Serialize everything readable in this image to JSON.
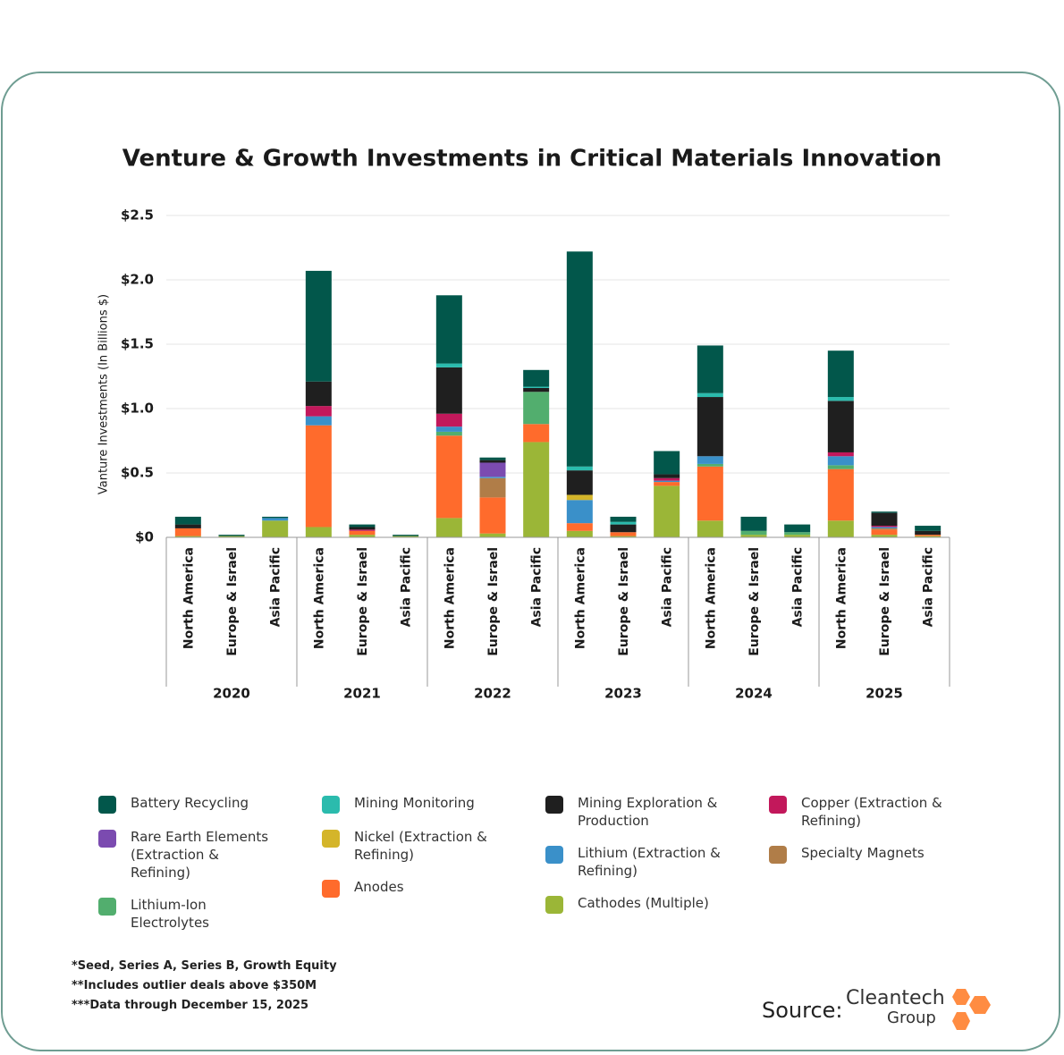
{
  "chart_data": {
    "type": "stacked_bar",
    "title": "Venture & Growth Investments in Critical Materials Innovation",
    "y_label": "Vanture Investments (In Billions $)",
    "categories": [
      "North America",
      "Europe & Israel",
      "Asia Pacific",
      "North America",
      "Europe & Israel",
      "Asia Pacific",
      "North America",
      "Europe & Israel",
      "Asia Pacific",
      "North America",
      "Europe & Israel",
      "Asia Pacific",
      "North America",
      "Europe & Israel",
      "Asia Pacific",
      "North America",
      "Europe & Israel",
      "Asia Pacific"
    ],
    "groups": [
      "2020",
      "2021",
      "2022",
      "2023",
      "2024",
      "2025"
    ],
    "ylim": [
      0,
      2.5
    ],
    "yticks": [
      {
        "value": 0,
        "label": "$0"
      },
      {
        "value": 0.5,
        "label": "$0.5"
      },
      {
        "value": 1,
        "label": "$1.0"
      },
      {
        "value": 1.5,
        "label": "$1.5"
      },
      {
        "value": 2,
        "label": "$2.0"
      },
      {
        "value": 2.5,
        "label": "$2.5"
      }
    ],
    "grid": true,
    "series": [
      {
        "name": "Cathodes (Multiple)",
        "color": "#9bb637",
        "values": [
          0.01,
          0.01,
          0.13,
          0.08,
          0.02,
          0.01,
          0.15,
          0.03,
          0.74,
          0.05,
          0.01,
          0.4,
          0.13,
          0.02,
          0.02,
          0.13,
          0.02,
          0.01
        ]
      },
      {
        "name": "Anodes",
        "color": "#ff6b2c",
        "values": [
          0.06,
          0,
          0,
          0.79,
          0.03,
          0,
          0.64,
          0.28,
          0.14,
          0.06,
          0.03,
          0.03,
          0.42,
          0,
          0,
          0.4,
          0.04,
          0.01
        ]
      },
      {
        "name": "Specialty Magnets",
        "color": "#b07d48",
        "values": [
          0,
          0,
          0,
          0,
          0,
          0,
          0,
          0.15,
          0,
          0,
          0,
          0,
          0,
          0,
          0,
          0,
          0.01,
          0
        ]
      },
      {
        "name": "Lithium-Ion Electrolytes",
        "color": "#52ae6e",
        "values": [
          0,
          0,
          0,
          0,
          0,
          0,
          0.03,
          0,
          0.25,
          0,
          0,
          0,
          0.02,
          0.03,
          0.02,
          0.03,
          0,
          0
        ]
      },
      {
        "name": "Lithium (Extraction & Refining)",
        "color": "#3a90c9",
        "values": [
          0,
          0,
          0.02,
          0.07,
          0,
          0,
          0.04,
          0.01,
          0,
          0.18,
          0,
          0.01,
          0.06,
          0,
          0,
          0.07,
          0.01,
          0
        ]
      },
      {
        "name": "Nickel (Extraction & Refining)",
        "color": "#d4b52a",
        "values": [
          0,
          0,
          0,
          0,
          0,
          0,
          0,
          0,
          0,
          0.04,
          0,
          0,
          0,
          0,
          0,
          0,
          0,
          0
        ]
      },
      {
        "name": "Rare Earth Elements (Extraction & Refining)",
        "color": "#7b4bb0",
        "values": [
          0,
          0,
          0,
          0,
          0,
          0,
          0,
          0.11,
          0,
          0,
          0,
          0,
          0,
          0,
          0,
          0,
          0,
          0
        ]
      },
      {
        "name": "Copper (Extraction & Refining)",
        "color": "#c2185b",
        "values": [
          0,
          0,
          0,
          0.08,
          0.01,
          0,
          0.1,
          0,
          0,
          0,
          0,
          0.02,
          0,
          0,
          0,
          0.03,
          0.01,
          0
        ]
      },
      {
        "name": "Mining Exploration & Production",
        "color": "#1f1f1f",
        "values": [
          0.03,
          0,
          0,
          0.19,
          0.02,
          0,
          0.36,
          0.02,
          0.03,
          0.19,
          0.06,
          0.03,
          0.46,
          0,
          0,
          0.4,
          0.1,
          0.03
        ]
      },
      {
        "name": "Mining Monitoring",
        "color": "#2bbbad",
        "values": [
          0,
          0,
          0,
          0,
          0,
          0,
          0.03,
          0,
          0.01,
          0.03,
          0.02,
          0,
          0.03,
          0,
          0,
          0.03,
          0,
          0
        ]
      },
      {
        "name": "Battery Recycling",
        "color": "#02574b",
        "values": [
          0.06,
          0.01,
          0.01,
          0.86,
          0.02,
          0.01,
          0.53,
          0.02,
          0.13,
          1.67,
          0.04,
          0.18,
          0.37,
          0.11,
          0.06,
          0.36,
          0.01,
          0.04
        ]
      }
    ]
  },
  "footnotes": [
    "*Seed, Series A, Series B, Growth Equity",
    "**Includes outlier deals above $350M",
    "***Data through December 15, 2025"
  ],
  "source_label": "Source:",
  "logo": [
    "Cleantech",
    "Group"
  ]
}
